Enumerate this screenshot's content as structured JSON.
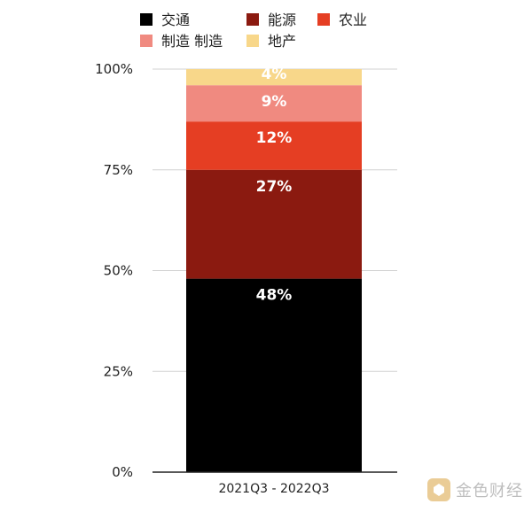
{
  "chart_data": {
    "type": "bar",
    "stacked": true,
    "categories": [
      "2021Q3 - 2022Q3"
    ],
    "series": [
      {
        "name": "交通",
        "values": [
          48
        ],
        "color": "#000000",
        "label": "48%",
        "label_color": "#ffffff"
      },
      {
        "name": "能源",
        "values": [
          27
        ],
        "color": "#8b1a10",
        "label": "27%",
        "label_color": "#ffffff"
      },
      {
        "name": "农业",
        "values": [
          12
        ],
        "color": "#e53e23",
        "label": "12%",
        "label_color": "#ffffff"
      },
      {
        "name": "制造 制造",
        "values": [
          9
        ],
        "color": "#f08a80",
        "label": "9%",
        "label_color": "#ffffff"
      },
      {
        "name": "地产",
        "values": [
          4
        ],
        "color": "#f8d78a",
        "label": "4%",
        "label_color": "#ffffff"
      }
    ],
    "yticks": [
      "0%",
      "25%",
      "50%",
      "75%",
      "100%"
    ],
    "ylim": [
      0,
      100
    ],
    "grid": true,
    "legend_position": "top"
  },
  "watermark": {
    "text": "金色财经",
    "logo_color": "#d9a441"
  }
}
